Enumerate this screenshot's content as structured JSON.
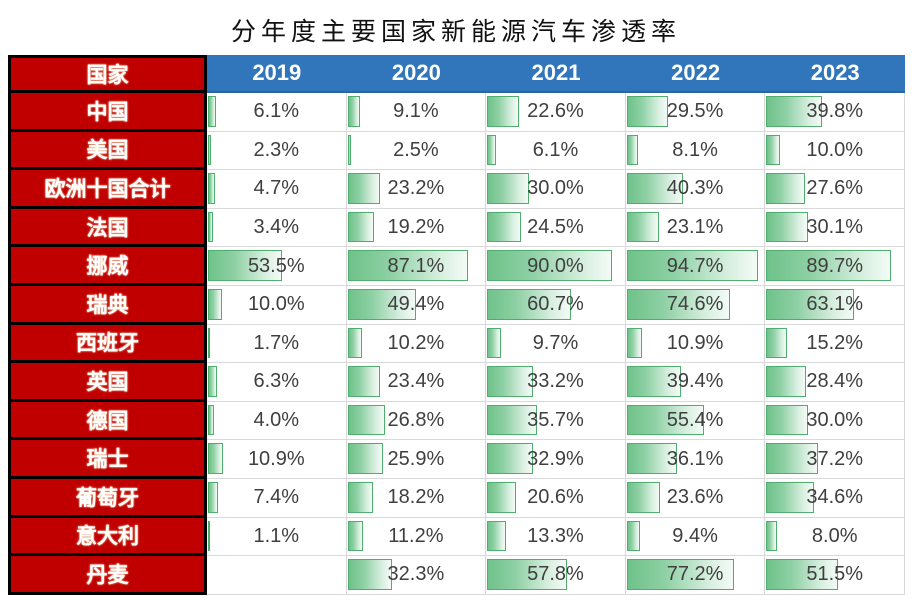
{
  "title": "分年度主要国家新能源汽车渗透率",
  "colors": {
    "header_red": "#c00000",
    "header_blue": "#3176bb",
    "bar_border_green": "#4fae6d",
    "bar_fill_green": "#6fc28a",
    "gridline": "#d9d9d9",
    "value_text": "#3f3f3f"
  },
  "chart_data": {
    "type": "table",
    "title": "分年度主要国家新能源汽车渗透率",
    "country_header": "国家",
    "years": [
      "2019",
      "2020",
      "2021",
      "2022",
      "2023"
    ],
    "value_unit": "%",
    "bar_scale": [
      0,
      100
    ],
    "rows": [
      {
        "country": "中国",
        "values": [
          6.1,
          9.1,
          22.6,
          29.5,
          39.8
        ]
      },
      {
        "country": "美国",
        "values": [
          2.3,
          2.5,
          6.1,
          8.1,
          10.0
        ]
      },
      {
        "country": "欧洲十国合计",
        "values": [
          4.7,
          23.2,
          30.0,
          40.3,
          27.6
        ]
      },
      {
        "country": "法国",
        "values": [
          3.4,
          19.2,
          24.5,
          23.1,
          30.1
        ]
      },
      {
        "country": "挪威",
        "values": [
          53.5,
          87.1,
          90.0,
          94.7,
          89.7
        ]
      },
      {
        "country": "瑞典",
        "values": [
          10.0,
          49.4,
          60.7,
          74.6,
          63.1
        ]
      },
      {
        "country": "西班牙",
        "values": [
          1.7,
          10.2,
          9.7,
          10.9,
          15.2
        ]
      },
      {
        "country": "英国",
        "values": [
          6.3,
          23.4,
          33.2,
          39.4,
          28.4
        ]
      },
      {
        "country": "德国",
        "values": [
          4.0,
          26.8,
          35.7,
          55.4,
          30.0
        ]
      },
      {
        "country": "瑞士",
        "values": [
          10.9,
          25.9,
          32.9,
          36.1,
          37.2
        ]
      },
      {
        "country": "葡萄牙",
        "values": [
          7.4,
          18.2,
          20.6,
          23.6,
          34.6
        ]
      },
      {
        "country": "意大利",
        "values": [
          1.1,
          11.2,
          13.3,
          9.4,
          8.0
        ]
      },
      {
        "country": "丹麦",
        "values": [
          null,
          32.3,
          57.8,
          77.2,
          51.5
        ]
      }
    ]
  }
}
